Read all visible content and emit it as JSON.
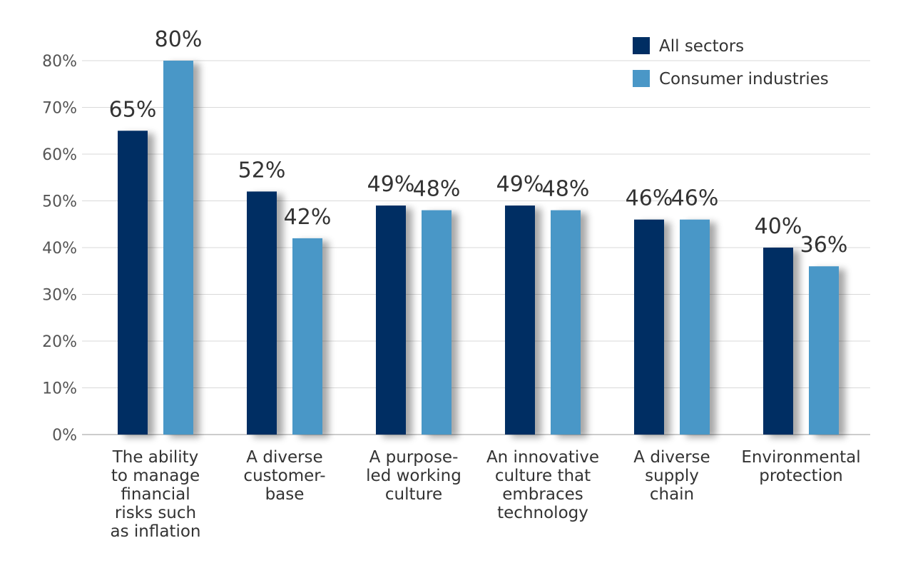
{
  "chart_data": {
    "type": "bar",
    "title": "",
    "xlabel": "",
    "ylabel": "",
    "ylim": [
      0,
      80
    ],
    "yticks": [
      0,
      10,
      20,
      30,
      40,
      50,
      60,
      70,
      80
    ],
    "ytick_labels": [
      "0%",
      "10%",
      "20%",
      "30%",
      "40%",
      "50%",
      "60%",
      "70%",
      "80%"
    ],
    "grid": true,
    "legend_position": "top-right",
    "categories": [
      [
        "The ability",
        "to manage",
        "financial",
        "risks such",
        "as inflation"
      ],
      [
        "A diverse",
        "customer-",
        "base"
      ],
      [
        "A purpose-",
        "led working",
        "culture"
      ],
      [
        "An innovative",
        "culture that",
        "embraces",
        "technology"
      ],
      [
        "A diverse",
        "supply",
        "chain"
      ],
      [
        "Environmental",
        "protection"
      ]
    ],
    "series": [
      {
        "name": "All sectors",
        "color": "#002e63",
        "values": [
          65,
          52,
          49,
          49,
          46,
          40
        ],
        "labels": [
          "65%",
          "52%",
          "49%",
          "49%",
          "46%",
          "40%"
        ]
      },
      {
        "name": "Consumer industries",
        "color": "#4a97c7",
        "values": [
          80,
          42,
          48,
          48,
          46,
          36
        ],
        "labels": [
          "80%",
          "42%",
          "48%",
          "48%",
          "46%",
          "36%"
        ]
      }
    ]
  }
}
